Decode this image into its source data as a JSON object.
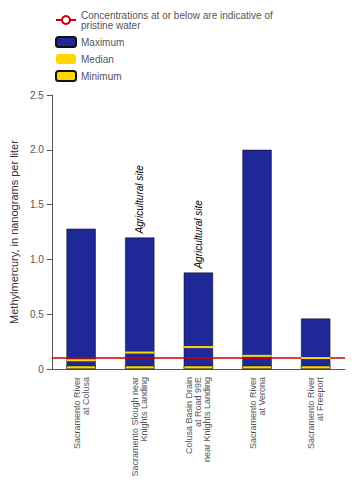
{
  "chart_data": {
    "type": "bar",
    "categories": [
      "Sacramento River\nat Colusa",
      "Sacramento Slough near\nKnights Landing",
      "Colusa Basin Drain\nat Road 99E\nnear Knights Landing",
      "Sacramento River\nat Verona",
      "Sacramento River\nat Freeport"
    ],
    "series": [
      {
        "name": "Maximum",
        "type": "bar",
        "color": "#1e2896",
        "values": [
          1.28,
          1.2,
          0.88,
          2.0,
          0.46
        ]
      },
      {
        "name": "Median",
        "marker": "dash",
        "color": "#FFD700",
        "values": [
          0.08,
          0.15,
          0.2,
          0.12,
          0.1
        ]
      },
      {
        "name": "Minimum",
        "type": "bar",
        "color": "#FFD700",
        "values": [
          0.03,
          0.03,
          0.03,
          0.03,
          0.03
        ]
      }
    ],
    "reference_lines": [
      {
        "name": "Concentrations at or below are indicative of\npristine water",
        "value": 0.1,
        "color": "#cc0000"
      }
    ],
    "annotations": [
      {
        "text": "Agricultural site",
        "category": "Sacramento Slough near\nKnights Landing"
      },
      {
        "text": "Agricultural site",
        "category": "Colusa Basin Drain\nat Road 99E\nnear Knights Landing"
      }
    ],
    "ylabel": "Methylmercury, in nanograms per liter",
    "ylim": [
      0,
      2.5
    ],
    "yticks": [
      0,
      0.5,
      {
        "value": 1,
        "label": "1.0"
      },
      1.5,
      {
        "value": 2,
        "label": "2.0"
      },
      2.5
    ],
    "grid": false,
    "legend": "upper left"
  }
}
